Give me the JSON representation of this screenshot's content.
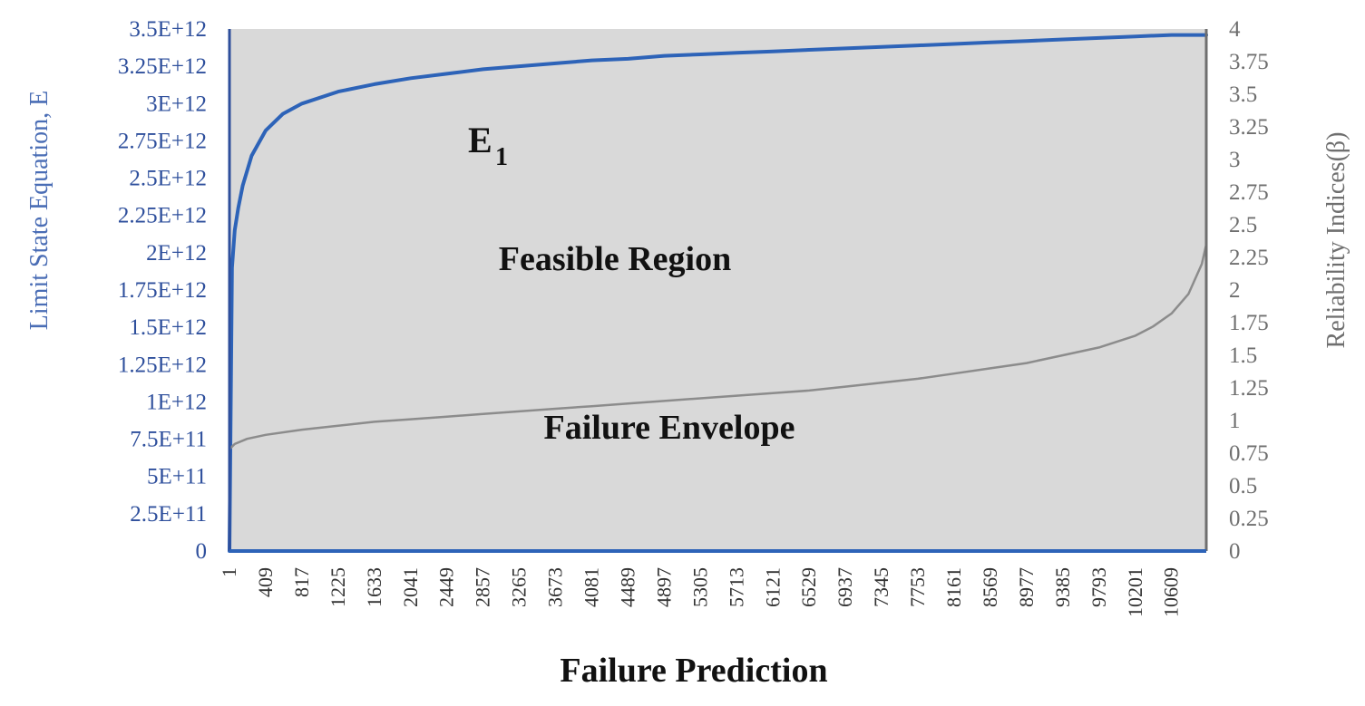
{
  "chart_data": {
    "type": "line",
    "title": "",
    "xlabel": "Failure Prediction",
    "ylabel_left": "Limit  State Equation, E",
    "ylabel_right": "Reliability  Indices(β)",
    "x_ticks": [
      "1",
      "409",
      "817",
      "1225",
      "1633",
      "2041",
      "2449",
      "2857",
      "3265",
      "3673",
      "4081",
      "4489",
      "4897",
      "5305",
      "5713",
      "6121",
      "6529",
      "6937",
      "7345",
      "7753",
      "8161",
      "8569",
      "8977",
      "9385",
      "9793",
      "10201",
      "10609"
    ],
    "xlim": [
      1,
      11000
    ],
    "y_left_ticks": [
      "0",
      "2.5E+11",
      "5E+11",
      "7.5E+11",
      "1E+12",
      "1.25E+12",
      "1.5E+12",
      "1.75E+12",
      "2E+12",
      "2.25E+12",
      "2.5E+12",
      "2.75E+12",
      "3E+12",
      "3.25E+12",
      "3.5E+12"
    ],
    "y_left_range": [
      0,
      3500000000000
    ],
    "y_right_ticks": [
      "0",
      "0.25",
      "0.5",
      "0.75",
      "1",
      "1.25",
      "1.5",
      "1.75",
      "2",
      "2.25",
      "2.5",
      "2.75",
      "3",
      "3.25",
      "3.5",
      "3.75",
      "4"
    ],
    "y_right_range": [
      0,
      4
    ],
    "grid": false,
    "colors": {
      "plot_background": "#d9d9d9",
      "left_axis": "#2e4f9c",
      "right_axis": "#6f6f6f",
      "e1_series": "#2d63b8",
      "beta_series": "#8c8c8c"
    },
    "series": [
      {
        "axis": "left",
        "x": [
          1,
          30,
          60,
          100,
          150,
          250,
          409,
          600,
          817,
          1225,
          1633,
          2041,
          2449,
          2857,
          3265,
          3673,
          4081,
          4489,
          4897,
          5305,
          5713,
          6121,
          6529,
          6937,
          7345,
          7753,
          8161,
          8569,
          8977,
          9385,
          9793,
          10201,
          10609,
          11000
        ],
        "y": [
          0,
          1900000000000.0,
          2150000000000.0,
          2300000000000.0,
          2450000000000.0,
          2650000000000.0,
          2820000000000.0,
          2930000000000.0,
          3000000000000.0,
          3080000000000.0,
          3130000000000.0,
          3170000000000.0,
          3200000000000.0,
          3230000000000.0,
          3250000000000.0,
          3270000000000.0,
          3290000000000.0,
          3300000000000.0,
          3320000000000.0,
          3330000000000.0,
          3340000000000.0,
          3350000000000.0,
          3360000000000.0,
          3370000000000.0,
          3380000000000.0,
          3390000000000.0,
          3400000000000.0,
          3410000000000.0,
          3420000000000.0,
          3430000000000.0,
          3440000000000.0,
          3450000000000.0,
          3460000000000.0,
          3460000000000.0
        ]
      },
      {
        "axis": "right",
        "x": [
          1,
          60,
          200,
          409,
          817,
          1225,
          1633,
          2041,
          2449,
          2857,
          3265,
          3673,
          4081,
          4489,
          4897,
          5305,
          5713,
          6121,
          6529,
          6937,
          7345,
          7753,
          8161,
          8569,
          8977,
          9385,
          9793,
          10201,
          10400,
          10609,
          10800,
          10950,
          11000
        ],
        "y": [
          0.78,
          0.82,
          0.86,
          0.89,
          0.93,
          0.96,
          0.99,
          1.01,
          1.03,
          1.05,
          1.07,
          1.09,
          1.11,
          1.13,
          1.15,
          1.17,
          1.19,
          1.21,
          1.23,
          1.26,
          1.29,
          1.32,
          1.36,
          1.4,
          1.44,
          1.5,
          1.56,
          1.65,
          1.72,
          1.82,
          1.97,
          2.2,
          2.35
        ]
      }
    ],
    "annotations": {
      "e1_main": "E",
      "e1_sub": "1",
      "feasible": "Feasible Region",
      "failure": "Failure Envelope"
    }
  }
}
